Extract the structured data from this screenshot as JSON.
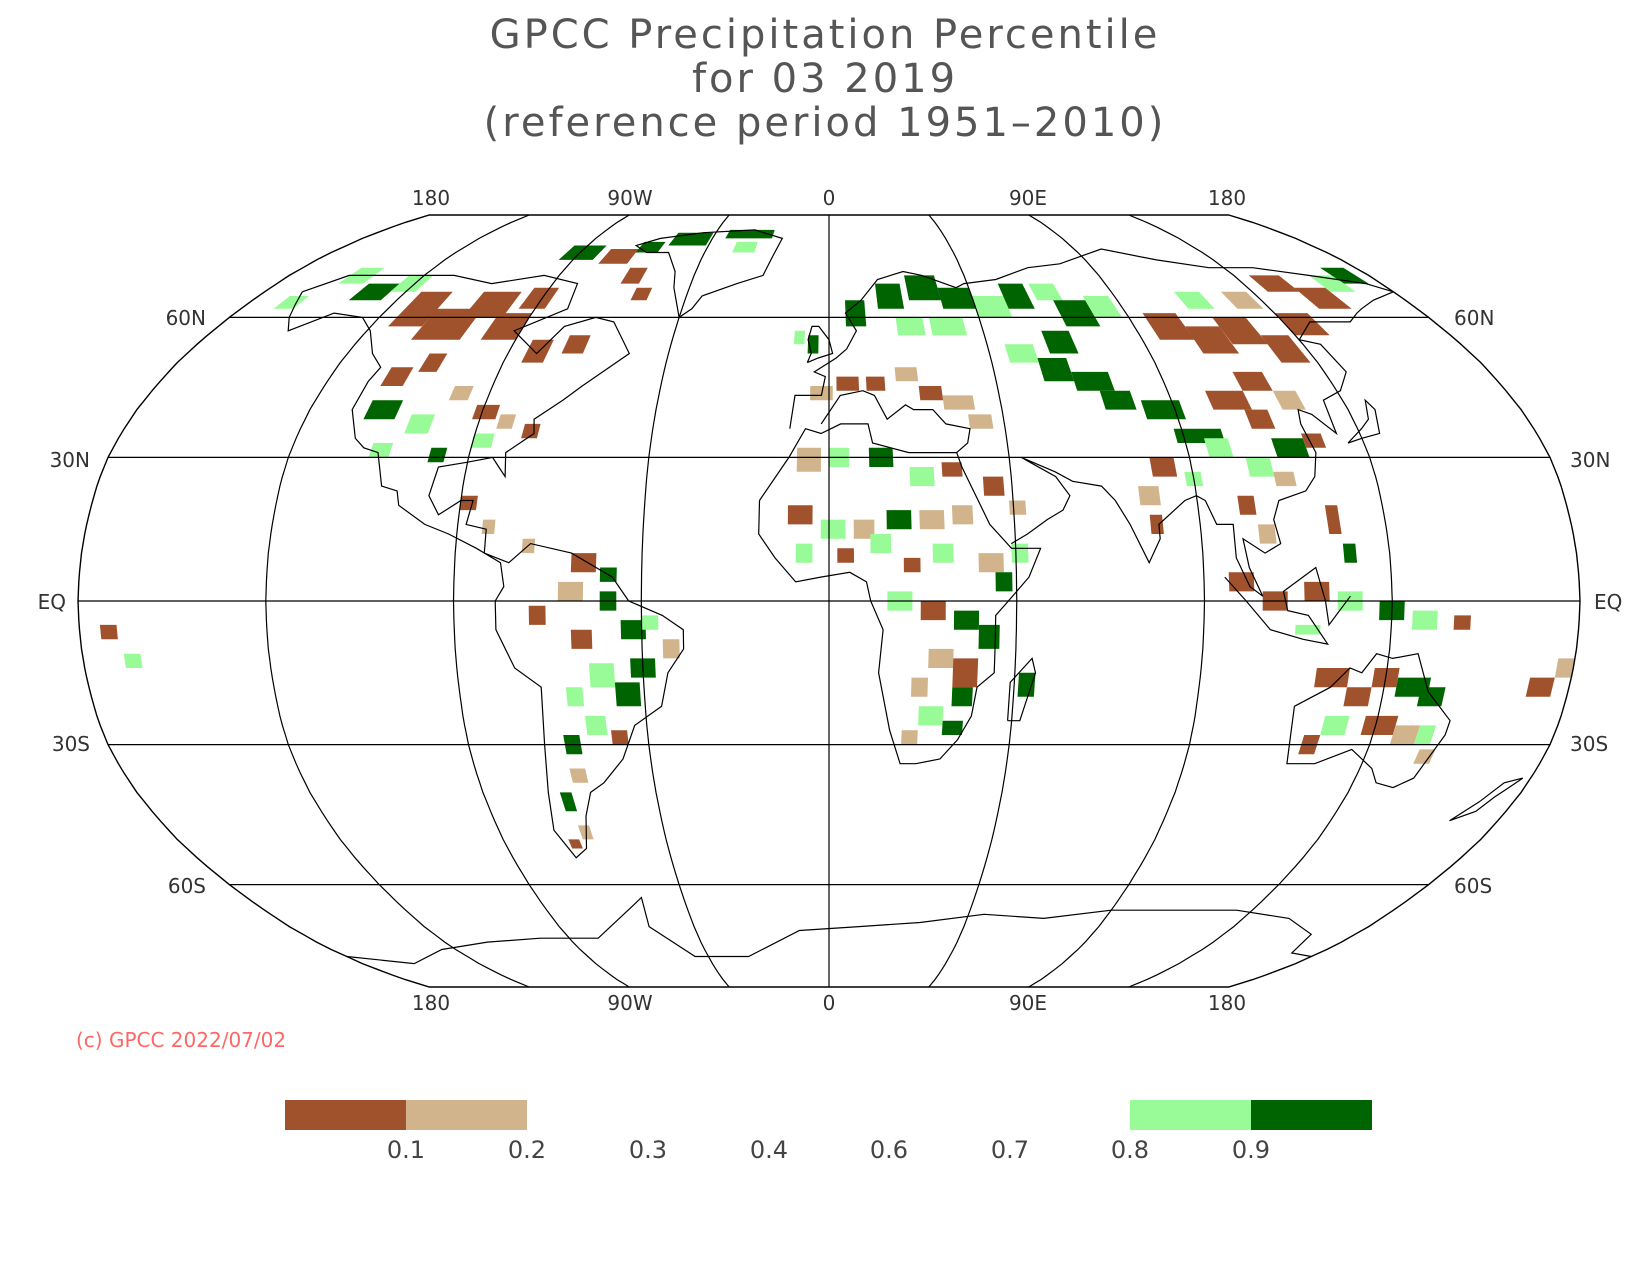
{
  "title": {
    "line1": "GPCC Precipitation Percentile",
    "line2": "for 03 2019",
    "line3": "(reference period 1951–2010)"
  },
  "copyright": "(c) GPCC 2022/07/02",
  "map": {
    "projection": "Robinson",
    "center_longitude": 0,
    "lon_labels_top": [
      "180",
      "90W",
      "0",
      "90E",
      "180"
    ],
    "lon_labels_bottom": [
      "180",
      "90W",
      "0",
      "90E",
      "180"
    ],
    "lat_labels_left": [
      "60N",
      "30N",
      "EQ",
      "30S",
      "60S"
    ],
    "lat_labels_right": [
      "60N",
      "30N",
      "EQ",
      "30S",
      "60S"
    ]
  },
  "legend": {
    "tick_labels": [
      "0.1",
      "0.2",
      "0.3",
      "0.4",
      "0.6",
      "0.7",
      "0.8",
      "0.9"
    ],
    "classes": [
      {
        "range": "<0.1",
        "color": "#a0522d"
      },
      {
        "range": "0.1-0.2",
        "color": "#d2b48c"
      },
      {
        "range": "0.8-0.9",
        "color": "#98fb98"
      },
      {
        "range": ">0.9",
        "color": "#006400"
      }
    ]
  },
  "colors": {
    "very_dry": "#a0522d",
    "dry": "#d2b48c",
    "wet": "#98fb98",
    "very_wet": "#006400",
    "copyright": "#ff6666",
    "lines": "#000000"
  }
}
